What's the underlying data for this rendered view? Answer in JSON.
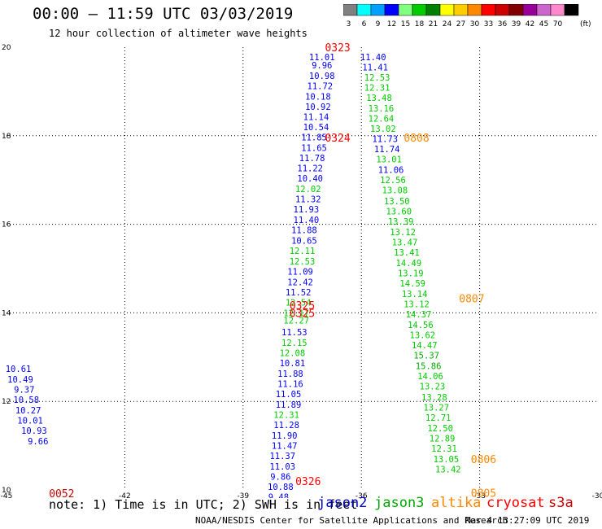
{
  "header": {
    "title": "00:00 – 11:59 UTC 03/03/2019",
    "subtitle": "12 hour collection of altimeter wave heights"
  },
  "color_scale": {
    "unit": "(ft)",
    "bins": [
      {
        "label": "3",
        "color": "#808080"
      },
      {
        "label": "6",
        "color": "#00ffff"
      },
      {
        "label": "9",
        "color": "#00a0ff"
      },
      {
        "label": "12",
        "color": "#0000ff"
      },
      {
        "label": "15",
        "color": "#80ff80"
      },
      {
        "label": "18",
        "color": "#00cc00"
      },
      {
        "label": "21",
        "color": "#008000"
      },
      {
        "label": "24",
        "color": "#ffff00"
      },
      {
        "label": "27",
        "color": "#ffcc00"
      },
      {
        "label": "30",
        "color": "#ff8800"
      },
      {
        "label": "33",
        "color": "#ff0000"
      },
      {
        "label": "36",
        "color": "#cc0000"
      },
      {
        "label": "39",
        "color": "#800000"
      },
      {
        "label": "42",
        "color": "#990099"
      },
      {
        "label": "45",
        "color": "#cc66cc"
      },
      {
        "label": "70",
        "color": "#ff88cc"
      },
      {
        "label": "",
        "color": "#000000"
      }
    ]
  },
  "chart_data": {
    "type": "scatter",
    "title": "00:00 – 11:59 UTC 03/03/2019",
    "subtitle": "12 hour collection of altimeter wave heights",
    "xlim": [
      -45,
      -30
    ],
    "ylim": [
      10,
      20
    ],
    "x_ticks": [
      "-45",
      "-42",
      "-39",
      "-36",
      "-33",
      "-30"
    ],
    "y_ticks": [
      "10",
      "12",
      "14",
      "16",
      "18",
      "20"
    ],
    "grid": true,
    "series_colors": {
      "j2": "#0000ff",
      "j3": "#00cc00",
      "ca": "#00aa00",
      "al": "#ff8800",
      "cr": "#ff0000",
      "s3": "#cc0000"
    },
    "points": [
      {
        "x": -37.0,
        "y": 19.78,
        "v": "11.01",
        "s": "j2"
      },
      {
        "x": -37.0,
        "y": 19.6,
        "v": "9.96",
        "s": "j2"
      },
      {
        "x": -37.0,
        "y": 19.36,
        "v": "10.98",
        "s": "j2"
      },
      {
        "x": -37.05,
        "y": 19.13,
        "v": "11.72",
        "s": "j2"
      },
      {
        "x": -37.1,
        "y": 18.89,
        "v": "10.18",
        "s": "j2"
      },
      {
        "x": -37.1,
        "y": 18.66,
        "v": "10.92",
        "s": "j2"
      },
      {
        "x": -37.15,
        "y": 18.43,
        "v": "11.14",
        "s": "j2"
      },
      {
        "x": -37.15,
        "y": 18.2,
        "v": "10.54",
        "s": "j2"
      },
      {
        "x": -37.2,
        "y": 17.97,
        "v": "11.85",
        "s": "j2"
      },
      {
        "x": -37.2,
        "y": 17.73,
        "v": "11.65",
        "s": "j2"
      },
      {
        "x": -37.25,
        "y": 17.5,
        "v": "11.78",
        "s": "j2"
      },
      {
        "x": -37.3,
        "y": 17.27,
        "v": "11.22",
        "s": "j2"
      },
      {
        "x": -37.3,
        "y": 17.04,
        "v": "10.40",
        "s": "j2"
      },
      {
        "x": -37.35,
        "y": 16.8,
        "v": "12.02",
        "s": "j3"
      },
      {
        "x": -37.35,
        "y": 16.57,
        "v": "11.32",
        "s": "j2"
      },
      {
        "x": -37.4,
        "y": 16.34,
        "v": "11.93",
        "s": "j2"
      },
      {
        "x": -37.4,
        "y": 16.1,
        "v": "11.40",
        "s": "j2"
      },
      {
        "x": -37.45,
        "y": 15.87,
        "v": "11.88",
        "s": "j2"
      },
      {
        "x": -37.45,
        "y": 15.63,
        "v": "10.65",
        "s": "j2"
      },
      {
        "x": -37.5,
        "y": 15.4,
        "v": "12.11",
        "s": "j3"
      },
      {
        "x": -37.5,
        "y": 15.17,
        "v": "12.53",
        "s": "j3"
      },
      {
        "x": -37.55,
        "y": 14.94,
        "v": "11.09",
        "s": "j2"
      },
      {
        "x": -37.55,
        "y": 14.7,
        "v": "12.42",
        "s": "j2"
      },
      {
        "x": -37.6,
        "y": 14.47,
        "v": "11.52",
        "s": "j2"
      },
      {
        "x": -37.6,
        "y": 14.24,
        "v": "12.54",
        "s": "j3"
      },
      {
        "x": -37.65,
        "y": 14.0,
        "v": "12.17",
        "s": "j3"
      },
      {
        "x": -37.65,
        "y": 13.83,
        "v": "12.27",
        "s": "j3"
      },
      {
        "x": -37.7,
        "y": 13.57,
        "v": "11.53",
        "s": "j2"
      },
      {
        "x": -37.7,
        "y": 13.33,
        "v": "12.15",
        "s": "j3"
      },
      {
        "x": -37.75,
        "y": 13.1,
        "v": "12.08",
        "s": "j3"
      },
      {
        "x": -37.75,
        "y": 12.87,
        "v": "10.81",
        "s": "j2"
      },
      {
        "x": -37.8,
        "y": 12.63,
        "v": "11.88",
        "s": "j2"
      },
      {
        "x": -37.8,
        "y": 12.4,
        "v": "11.16",
        "s": "j2"
      },
      {
        "x": -37.85,
        "y": 12.17,
        "v": "11.05",
        "s": "j2"
      },
      {
        "x": -37.85,
        "y": 11.93,
        "v": "11.89",
        "s": "j2"
      },
      {
        "x": -37.9,
        "y": 11.7,
        "v": "12.31",
        "s": "j3"
      },
      {
        "x": -37.9,
        "y": 11.47,
        "v": "11.28",
        "s": "j2"
      },
      {
        "x": -37.95,
        "y": 11.23,
        "v": "11.90",
        "s": "j2"
      },
      {
        "x": -37.95,
        "y": 11.0,
        "v": "11.47",
        "s": "j2"
      },
      {
        "x": -38.0,
        "y": 10.77,
        "v": "11.37",
        "s": "j2"
      },
      {
        "x": -38.0,
        "y": 10.53,
        "v": "11.03",
        "s": "j2"
      },
      {
        "x": -38.05,
        "y": 10.3,
        "v": "9.86",
        "s": "j2"
      },
      {
        "x": -38.05,
        "y": 10.07,
        "v": "10.88",
        "s": "j2"
      },
      {
        "x": -38.1,
        "y": 9.84,
        "v": "9.48",
        "s": "j2"
      },
      {
        "x": -35.7,
        "y": 19.78,
        "v": "11.40",
        "s": "j2"
      },
      {
        "x": -35.65,
        "y": 19.55,
        "v": "11.41",
        "s": "j2"
      },
      {
        "x": -35.6,
        "y": 19.32,
        "v": "12.53",
        "s": "j3"
      },
      {
        "x": -35.6,
        "y": 19.09,
        "v": "12.31",
        "s": "j3"
      },
      {
        "x": -35.55,
        "y": 18.86,
        "v": "13.48",
        "s": "j3"
      },
      {
        "x": -35.5,
        "y": 18.62,
        "v": "13.16",
        "s": "j3"
      },
      {
        "x": -35.5,
        "y": 18.39,
        "v": "12.64",
        "s": "j3"
      },
      {
        "x": -35.45,
        "y": 18.16,
        "v": "13.02",
        "s": "j3"
      },
      {
        "x": -35.4,
        "y": 17.93,
        "v": "11.73",
        "s": "j2"
      },
      {
        "x": -35.35,
        "y": 17.7,
        "v": "11.74",
        "s": "j2"
      },
      {
        "x": -35.3,
        "y": 17.47,
        "v": "13.01",
        "s": "j3"
      },
      {
        "x": -35.25,
        "y": 17.23,
        "v": "11.06",
        "s": "j2"
      },
      {
        "x": -35.2,
        "y": 17.0,
        "v": "12.56",
        "s": "j3"
      },
      {
        "x": -35.15,
        "y": 16.77,
        "v": "13.08",
        "s": "j3"
      },
      {
        "x": -35.1,
        "y": 16.53,
        "v": "13.50",
        "s": "j3"
      },
      {
        "x": -35.05,
        "y": 16.3,
        "v": "13.60",
        "s": "j3"
      },
      {
        "x": -35.0,
        "y": 16.07,
        "v": "13.39",
        "s": "j3"
      },
      {
        "x": -34.95,
        "y": 15.83,
        "v": "13.12",
        "s": "j3"
      },
      {
        "x": -34.9,
        "y": 15.6,
        "v": "13.47",
        "s": "j3"
      },
      {
        "x": -34.85,
        "y": 15.37,
        "v": "13.41",
        "s": "j3"
      },
      {
        "x": -34.8,
        "y": 15.13,
        "v": "14.49",
        "s": "j3"
      },
      {
        "x": -34.75,
        "y": 14.9,
        "v": "13.19",
        "s": "j3"
      },
      {
        "x": -34.7,
        "y": 14.67,
        "v": "14.59",
        "s": "j3"
      },
      {
        "x": -34.65,
        "y": 14.43,
        "v": "13.14",
        "s": "j3"
      },
      {
        "x": -34.6,
        "y": 14.2,
        "v": "13.12",
        "s": "j3"
      },
      {
        "x": -34.55,
        "y": 13.97,
        "v": "14.37",
        "s": "j3"
      },
      {
        "x": -34.5,
        "y": 13.73,
        "v": "14.56",
        "s": "j3"
      },
      {
        "x": -34.45,
        "y": 13.5,
        "v": "13.62",
        "s": "j3"
      },
      {
        "x": -34.4,
        "y": 13.27,
        "v": "14.47",
        "s": "j3"
      },
      {
        "x": -34.35,
        "y": 13.04,
        "v": "15.37",
        "s": "ca"
      },
      {
        "x": -34.3,
        "y": 12.8,
        "v": "15.86",
        "s": "ca"
      },
      {
        "x": -34.25,
        "y": 12.57,
        "v": "14.06",
        "s": "j3"
      },
      {
        "x": -34.2,
        "y": 12.34,
        "v": "13.23",
        "s": "j3"
      },
      {
        "x": -34.15,
        "y": 12.1,
        "v": "13.28",
        "s": "j3"
      },
      {
        "x": -34.1,
        "y": 11.87,
        "v": "13.27",
        "s": "j3"
      },
      {
        "x": -34.05,
        "y": 11.64,
        "v": "12.71",
        "s": "j3"
      },
      {
        "x": -34.0,
        "y": 11.4,
        "v": "12.50",
        "s": "j3"
      },
      {
        "x": -33.95,
        "y": 11.17,
        "v": "12.89",
        "s": "j3"
      },
      {
        "x": -33.9,
        "y": 10.94,
        "v": "12.31",
        "s": "j3"
      },
      {
        "x": -33.85,
        "y": 10.7,
        "v": "13.05",
        "s": "j3"
      },
      {
        "x": -33.8,
        "y": 10.47,
        "v": "13.42",
        "s": "j3"
      },
      {
        "x": -44.7,
        "y": 12.74,
        "v": "10.61",
        "s": "j2"
      },
      {
        "x": -44.65,
        "y": 12.5,
        "v": "10.49",
        "s": "j2"
      },
      {
        "x": -44.55,
        "y": 12.27,
        "v": "9.37",
        "s": "j2"
      },
      {
        "x": -44.5,
        "y": 12.04,
        "v": "10.58",
        "s": "j2"
      },
      {
        "x": -44.45,
        "y": 11.8,
        "v": "10.27",
        "s": "j2"
      },
      {
        "x": -44.4,
        "y": 11.57,
        "v": "10.01",
        "s": "j2"
      },
      {
        "x": -44.3,
        "y": 11.34,
        "v": "10.93",
        "s": "j2"
      },
      {
        "x": -44.2,
        "y": 11.1,
        "v": "9.66",
        "s": "j2"
      }
    ],
    "pass_labels": [
      {
        "x": -36.6,
        "y": 20.0,
        "text": "0323",
        "s": "cr"
      },
      {
        "x": -36.6,
        "y": 17.96,
        "text": "0324",
        "s": "cr"
      },
      {
        "x": -37.5,
        "y": 14.17,
        "text": "0325",
        "s": "cr"
      },
      {
        "x": -37.5,
        "y": 14.0,
        "text": "0325",
        "s": "cr"
      },
      {
        "x": -37.35,
        "y": 10.2,
        "text": "0326",
        "s": "cr"
      },
      {
        "x": -43.6,
        "y": 9.93,
        "text": "0052",
        "s": "s3"
      },
      {
        "x": -34.6,
        "y": 17.96,
        "text": "0808",
        "s": "al"
      },
      {
        "x": -33.2,
        "y": 14.33,
        "text": "0807",
        "s": "al"
      },
      {
        "x": -32.9,
        "y": 10.7,
        "text": "0806",
        "s": "al"
      },
      {
        "x": -32.9,
        "y": 9.94,
        "text": "0805",
        "s": "al"
      }
    ]
  },
  "footer": {
    "note": "note: 1) Time is in UTC; 2) SWH is in feet",
    "legend": [
      {
        "label": "jason2",
        "color": "#0000cc"
      },
      {
        "label": "jason3",
        "color": "#00aa00"
      },
      {
        "label": "altika",
        "color": "#ff8800"
      },
      {
        "label": "cryosat",
        "color": "#ff0000"
      },
      {
        "label": "s3a",
        "color": "#cc0000"
      }
    ],
    "credit": "NOAA/NESDIS Center for Satellite Applications and Research",
    "timestamp": "Mar  4 13:27:09 UTC 2019"
  }
}
